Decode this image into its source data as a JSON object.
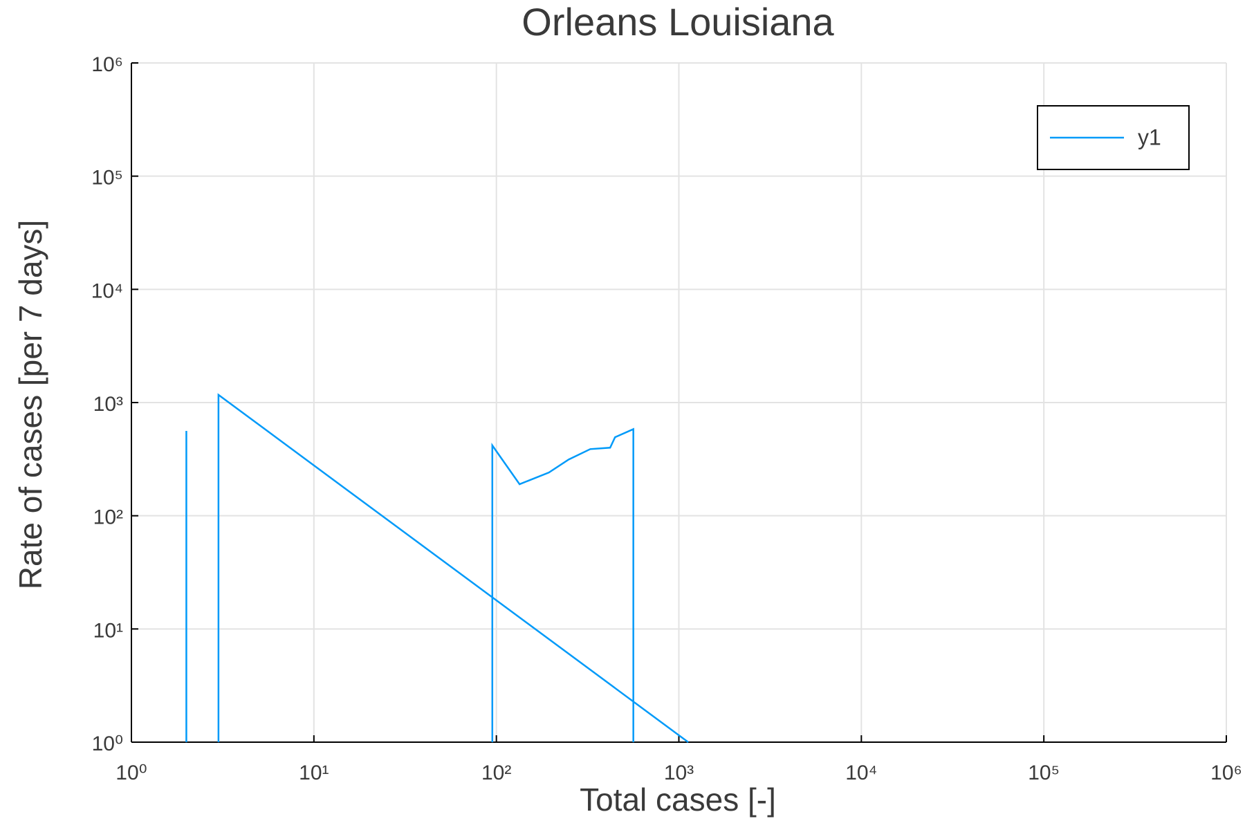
{
  "chart_data": {
    "type": "line",
    "title": "Orleans Louisiana",
    "x_label": "Total cases [-]",
    "y_label": "Rate of cases [per 7 days]",
    "log_x": true,
    "log_y": true,
    "grid": true,
    "legend": "top-right",
    "x": [
      2,
      2,
      null,
      3,
      3,
      1125,
      null,
      95,
      95,
      134,
      194,
      249,
      327,
      420,
      447,
      563,
      563
    ],
    "series": [
      {
        "name": "y1",
        "color": "#009af9",
        "values": [
          1,
          562,
          null,
          1,
          1170,
          1,
          null,
          1,
          418,
          190,
          241,
          314,
          388,
          399,
          494,
          582,
          1
        ]
      }
    ],
    "xlim": [
      1,
      1000000
    ],
    "ylim": [
      1,
      1000000
    ],
    "xticks": [
      {
        "value": 1,
        "label": "10⁰"
      },
      {
        "value": 10,
        "label": "10¹"
      },
      {
        "value": 100,
        "label": "10²"
      },
      {
        "value": 1000,
        "label": "10³"
      },
      {
        "value": 10000,
        "label": "10⁴"
      },
      {
        "value": 100000,
        "label": "10⁵"
      },
      {
        "value": 1000000,
        "label": "10⁶"
      }
    ],
    "yticks": [
      {
        "value": 1,
        "label": "10⁰"
      },
      {
        "value": 10,
        "label": "10¹"
      },
      {
        "value": 100,
        "label": "10²"
      },
      {
        "value": 1000,
        "label": "10³"
      },
      {
        "value": 10000,
        "label": "10⁴"
      },
      {
        "value": 100000,
        "label": "10⁵"
      },
      {
        "value": 1000000,
        "label": "10⁶"
      }
    ]
  }
}
